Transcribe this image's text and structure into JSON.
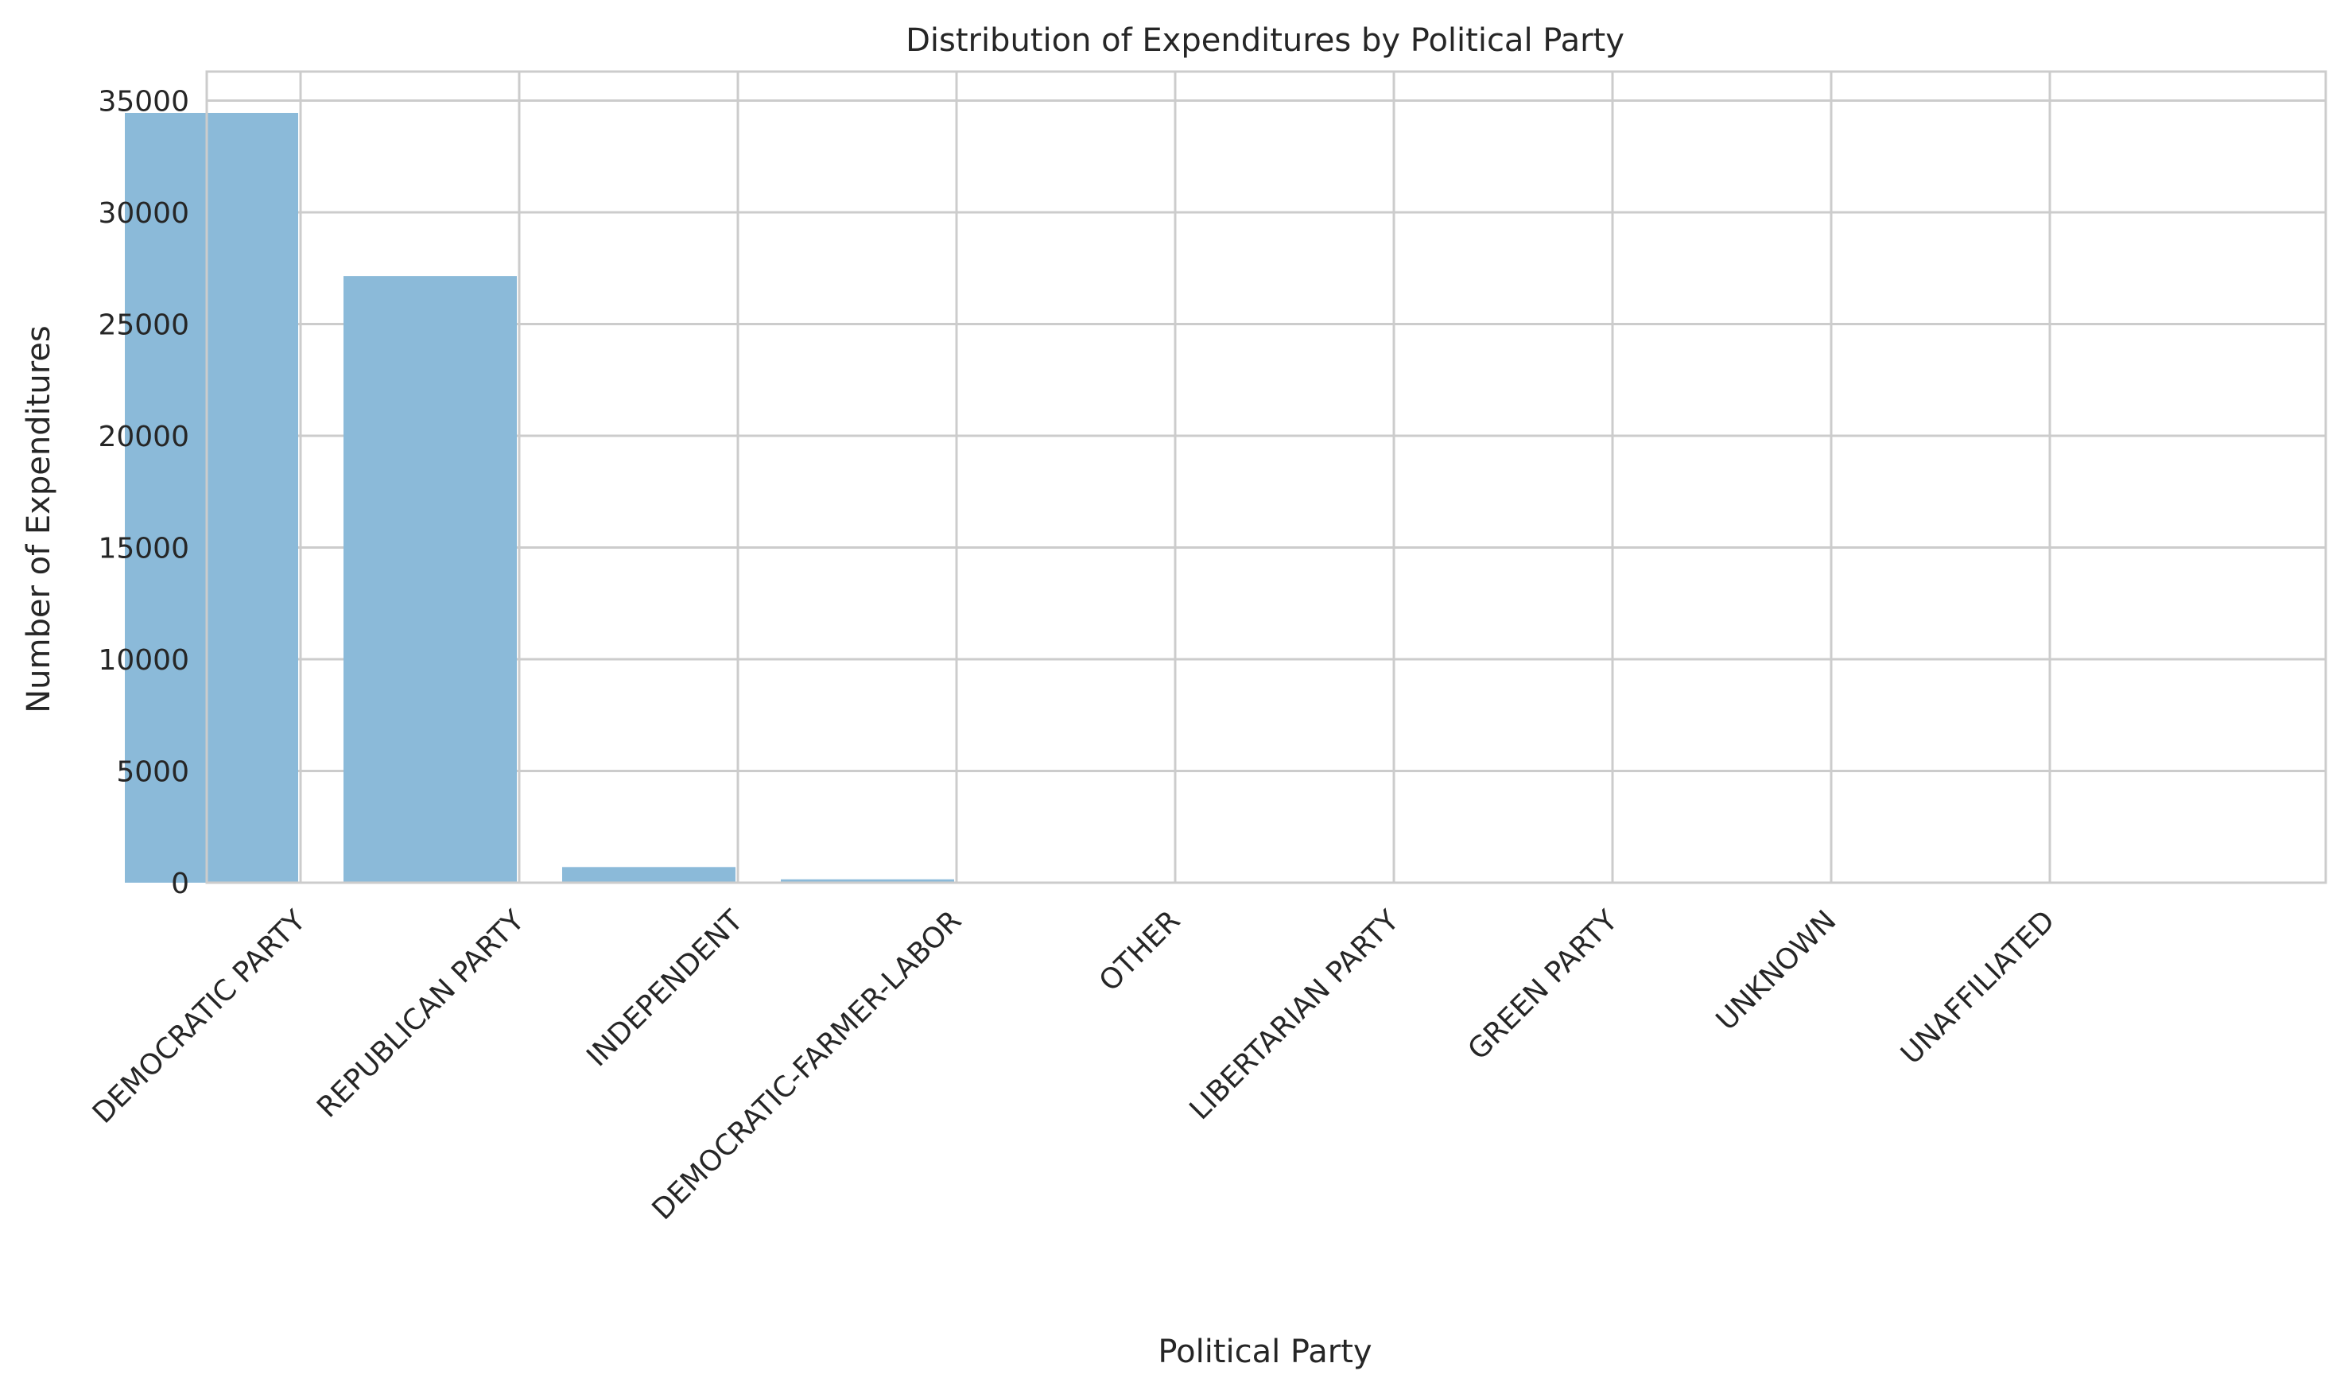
{
  "chart_data": {
    "type": "bar",
    "title": "Distribution of Expenditures by Political Party",
    "xlabel": "Political Party",
    "ylabel": "Number of Expenditures",
    "categories": [
      "DEMOCRATIC PARTY",
      "REPUBLICAN PARTY",
      "INDEPENDENT",
      "DEMOCRATIC-FARMER-LABOR",
      "OTHER",
      "LIBERTARIAN PARTY",
      "GREEN PARTY",
      "UNKNOWN",
      "UNAFFILIATED"
    ],
    "values": [
      34450,
      27150,
      700,
      150,
      40,
      25,
      15,
      10,
      5
    ],
    "ylim": [
      0,
      36300
    ],
    "yticks": [
      0,
      5000,
      10000,
      15000,
      20000,
      25000,
      30000,
      35000
    ],
    "ytick_labels": [
      "0",
      "5000",
      "10000",
      "15000",
      "20000",
      "25000",
      "30000",
      "35000"
    ],
    "grid": true,
    "legend": "none",
    "colors": {
      "bar": "#8bbad9",
      "grid": "#cccccc",
      "axes_edge": "#cccccc",
      "text": "#262626"
    }
  }
}
